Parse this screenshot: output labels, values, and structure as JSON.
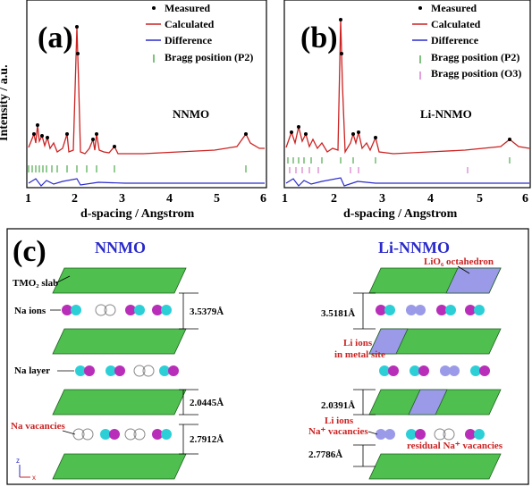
{
  "panel_a": {
    "label": "(a)",
    "sample": "NNMO",
    "legend": [
      "Measured",
      "Calculated",
      "Difference",
      "Bragg position (P2)"
    ],
    "ylabel": "Intensity / a.u.",
    "xlabel": "d-spacing / Angstrom",
    "xticks": [
      "1",
      "2",
      "3",
      "4",
      "5",
      "6"
    ]
  },
  "panel_b": {
    "label": "(b)",
    "sample": "Li-NNMO",
    "legend": [
      "Measured",
      "Calculated",
      "Difference",
      "Bragg position (P2)",
      "Bragg position (O3)"
    ],
    "xlabel": "d-spacing / Angstrom",
    "xticks": [
      "1",
      "2",
      "3",
      "4",
      "5",
      "6"
    ]
  },
  "panel_c": {
    "label": "(c)",
    "left_title": "NNMO",
    "right_title": "Li-NNMO",
    "left_labels": {
      "tmo2": "TMO₂ slab",
      "na_ions": "Na ions",
      "na_layer": "Na layer",
      "na_vac": "Na vacancies"
    },
    "left_spacings": [
      "3.5379Å",
      "2.0445Å",
      "2.7912Å"
    ],
    "right_labels": {
      "lio6": "LiO₆ octahedron",
      "li_metal_1": "Li ions",
      "li_metal_2": "in metal site",
      "li_na_1": "Li ions",
      "li_na_2": "Na⁺ vacancies",
      "residual": "residual Na⁺ vacancies"
    },
    "right_spacings": [
      "3.5181Å",
      "2.0391Å",
      "2.7786Å"
    ],
    "axes_glyph": {
      "z": "z",
      "x": "x"
    }
  },
  "colors": {
    "measured": "#000000",
    "calculated": "#cc2222",
    "difference": "#2a2acc",
    "bragg_p2": "#2a9a2a",
    "bragg_o3": "#d060c0",
    "slab": "#4fc04f",
    "li_octa": "#9a9ae8",
    "na": "#2ccfd6",
    "tm": "#b82eb8"
  }
}
